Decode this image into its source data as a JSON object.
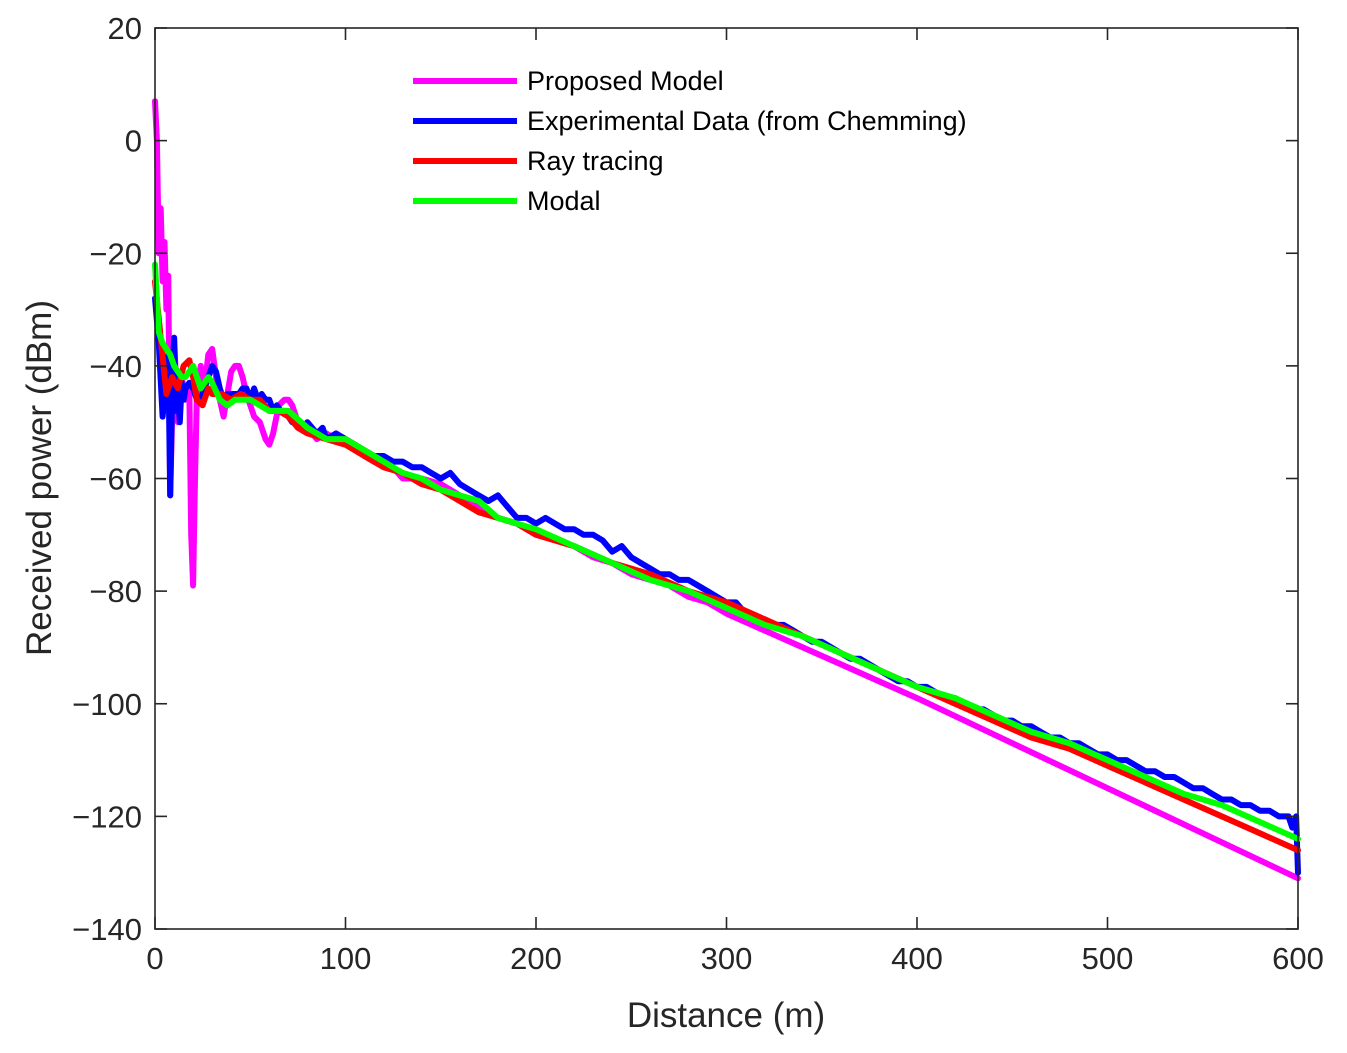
{
  "chart_data": {
    "type": "line",
    "title": "",
    "xlabel": "Distance (m)",
    "ylabel": "Received power (dBm)",
    "xlim": [
      0,
      600
    ],
    "ylim": [
      -140,
      20
    ],
    "xticks": [
      0,
      100,
      200,
      300,
      400,
      500,
      600
    ],
    "yticks": [
      20,
      0,
      -20,
      -40,
      -60,
      -80,
      -100,
      -120,
      -140
    ],
    "xtick_labels": [
      "0",
      "100",
      "200",
      "300",
      "400",
      "500",
      "600"
    ],
    "ytick_labels": [
      "20",
      "0",
      "−20",
      "−40",
      "−60",
      "−80",
      "−100",
      "−120",
      "−140"
    ],
    "grid": false,
    "legend_position": "top-center",
    "series": [
      {
        "name": "Proposed Model",
        "color": "#ff00ff",
        "x": [
          0,
          1,
          2,
          3,
          4,
          5,
          6,
          7,
          8,
          10,
          12,
          14,
          16,
          18,
          19,
          20,
          21,
          22,
          24,
          26,
          28,
          30,
          32,
          34,
          36,
          38,
          40,
          42,
          44,
          46,
          48,
          50,
          52,
          55,
          58,
          60,
          62,
          65,
          68,
          70,
          72,
          75,
          80,
          85,
          90,
          95,
          100,
          105,
          110,
          115,
          120,
          125,
          130,
          135,
          140,
          150,
          160,
          170,
          180,
          190,
          200,
          210,
          220,
          230,
          240,
          250,
          260,
          270,
          280,
          290,
          300,
          320,
          340,
          360,
          380,
          400,
          450,
          500,
          550,
          600
        ],
        "y": [
          7,
          0,
          -20,
          -12,
          -25,
          -18,
          -30,
          -24,
          -63,
          -35,
          -50,
          -42,
          -46,
          -44,
          -70,
          -79,
          -60,
          -45,
          -40,
          -44,
          -38,
          -37,
          -42,
          -46,
          -49,
          -45,
          -41,
          -40,
          -40,
          -42,
          -45,
          -47,
          -49,
          -50,
          -53,
          -54,
          -52,
          -47,
          -46,
          -46,
          -47,
          -50,
          -51,
          -53,
          -52,
          -53,
          -53,
          -54,
          -56,
          -57,
          -57,
          -58,
          -60,
          -60,
          -60,
          -61,
          -63,
          -65,
          -67,
          -68,
          -70,
          -71,
          -72,
          -74,
          -75,
          -77,
          -78,
          -79,
          -81,
          -82,
          -84,
          -87,
          -90,
          -93,
          -96,
          -99,
          -107,
          -115,
          -123,
          -131
        ]
      },
      {
        "name": "Experimental Data (from Chemming)",
        "color": "#0000ff",
        "x": [
          0,
          2,
          4,
          6,
          7,
          8,
          9,
          10,
          11,
          12,
          13,
          14,
          15,
          16,
          18,
          20,
          22,
          24,
          26,
          28,
          30,
          32,
          34,
          36,
          38,
          40,
          42,
          44,
          46,
          48,
          50,
          52,
          54,
          56,
          58,
          60,
          62,
          64,
          66,
          68,
          70,
          72,
          75,
          78,
          80,
          85,
          88,
          90,
          95,
          100,
          105,
          110,
          115,
          120,
          125,
          130,
          135,
          140,
          145,
          150,
          155,
          160,
          165,
          170,
          175,
          180,
          185,
          190,
          195,
          200,
          205,
          210,
          215,
          220,
          225,
          230,
          235,
          240,
          245,
          250,
          255,
          260,
          265,
          270,
          275,
          280,
          285,
          290,
          295,
          300,
          305,
          310,
          315,
          320,
          325,
          330,
          335,
          340,
          345,
          350,
          355,
          360,
          365,
          370,
          375,
          380,
          385,
          390,
          395,
          400,
          405,
          410,
          415,
          420,
          425,
          430,
          435,
          440,
          445,
          450,
          455,
          460,
          465,
          470,
          475,
          480,
          485,
          490,
          495,
          500,
          505,
          510,
          515,
          520,
          525,
          530,
          535,
          540,
          545,
          550,
          555,
          560,
          565,
          570,
          575,
          580,
          585,
          590,
          595,
          597,
          599,
          600
        ],
        "y": [
          -28,
          -36,
          -49,
          -42,
          -38,
          -63,
          -45,
          -35,
          -48,
          -44,
          -50,
          -43,
          -46,
          -44,
          -43,
          -44,
          -46,
          -46,
          -44,
          -42,
          -40,
          -41,
          -44,
          -46,
          -45,
          -45,
          -45,
          -45,
          -44,
          -44,
          -46,
          -44,
          -46,
          -45,
          -46,
          -46,
          -48,
          -47,
          -48,
          -48,
          -49,
          -50,
          -50,
          -51,
          -50,
          -52,
          -51,
          -53,
          -52,
          -53,
          -54,
          -55,
          -56,
          -56,
          -57,
          -57,
          -58,
          -58,
          -59,
          -60,
          -59,
          -61,
          -62,
          -63,
          -64,
          -63,
          -65,
          -67,
          -67,
          -68,
          -67,
          -68,
          -69,
          -69,
          -70,
          -70,
          -71,
          -73,
          -72,
          -74,
          -75,
          -76,
          -77,
          -77,
          -78,
          -78,
          -79,
          -80,
          -81,
          -82,
          -82,
          -84,
          -85,
          -85,
          -86,
          -86,
          -87,
          -88,
          -89,
          -89,
          -90,
          -91,
          -92,
          -92,
          -93,
          -94,
          -95,
          -96,
          -96,
          -97,
          -97,
          -98,
          -99,
          -99,
          -100,
          -101,
          -101,
          -102,
          -103,
          -103,
          -104,
          -104,
          -105,
          -106,
          -106,
          -107,
          -107,
          -108,
          -109,
          -109,
          -110,
          -110,
          -111,
          -112,
          -112,
          -113,
          -113,
          -114,
          -115,
          -115,
          -116,
          -117,
          -117,
          -118,
          -118,
          -119,
          -119,
          -120,
          -120,
          -122,
          -120,
          -130
        ]
      },
      {
        "name": "Ray tracing",
        "color": "#ff0000",
        "x": [
          0,
          3,
          6,
          9,
          12,
          15,
          18,
          20,
          22,
          25,
          28,
          30,
          35,
          40,
          45,
          50,
          55,
          60,
          65,
          70,
          75,
          80,
          90,
          100,
          110,
          120,
          130,
          140,
          150,
          160,
          170,
          180,
          190,
          200,
          220,
          240,
          260,
          280,
          300,
          320,
          340,
          360,
          380,
          400,
          420,
          440,
          460,
          480,
          500,
          520,
          540,
          560,
          580,
          600
        ],
        "y": [
          -25,
          -35,
          -45,
          -42,
          -44,
          -40,
          -39,
          -42,
          -46,
          -47,
          -44,
          -45,
          -45,
          -46,
          -45,
          -46,
          -46,
          -48,
          -48,
          -49,
          -51,
          -52,
          -53,
          -54,
          -56,
          -58,
          -59,
          -61,
          -62,
          -64,
          -66,
          -67,
          -68,
          -70,
          -72,
          -75,
          -77,
          -80,
          -82,
          -85,
          -88,
          -91,
          -94,
          -97,
          -100,
          -103,
          -106,
          -108,
          -111,
          -114,
          -117,
          -120,
          -123,
          -126
        ]
      },
      {
        "name": "Modal",
        "color": "#00ff00",
        "x": [
          0,
          2,
          4,
          6,
          8,
          10,
          12,
          14,
          16,
          18,
          20,
          22,
          24,
          26,
          28,
          30,
          34,
          38,
          42,
          46,
          50,
          55,
          60,
          65,
          70,
          80,
          90,
          100,
          110,
          120,
          130,
          140,
          150,
          160,
          170,
          180,
          190,
          200,
          220,
          240,
          260,
          280,
          300,
          320,
          340,
          360,
          380,
          400,
          420,
          440,
          460,
          480,
          500,
          520,
          540,
          560,
          580,
          600
        ],
        "y": [
          -22,
          -34,
          -36,
          -37,
          -38,
          -40,
          -41,
          -42,
          -42,
          -41,
          -40,
          -42,
          -44,
          -43,
          -42,
          -43,
          -46,
          -47,
          -46,
          -46,
          -46,
          -47,
          -48,
          -48,
          -48,
          -51,
          -53,
          -53,
          -55,
          -57,
          -59,
          -60,
          -62,
          -63,
          -64,
          -67,
          -68,
          -69,
          -72,
          -75,
          -78,
          -80,
          -83,
          -86,
          -88,
          -91,
          -94,
          -97,
          -99,
          -102,
          -105,
          -107,
          -110,
          -113,
          -116,
          -118,
          -121,
          -124
        ]
      }
    ]
  }
}
